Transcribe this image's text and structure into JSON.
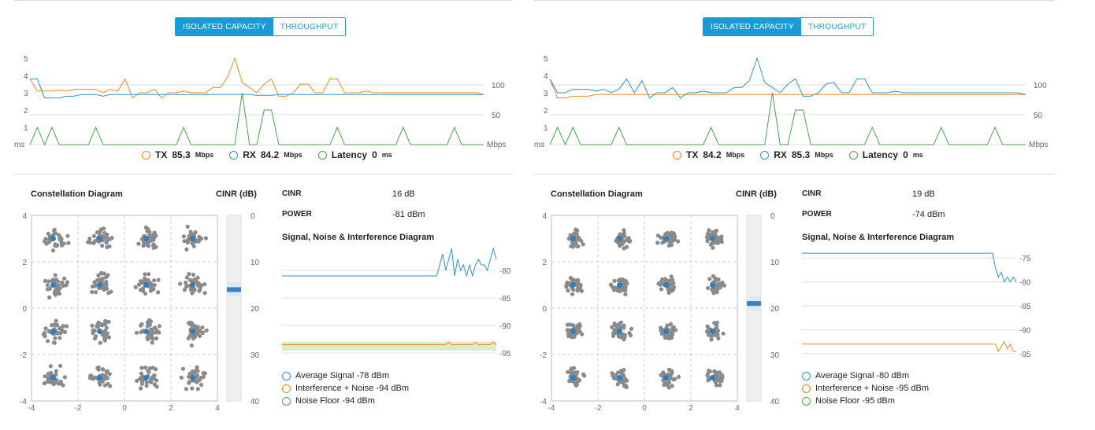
{
  "panels": [
    {
      "tabs": [
        {
          "label": "ISOLATED CAPACITY",
          "active": true
        },
        {
          "label": "THROUGHPUT",
          "active": false
        }
      ],
      "chart_data": {
        "type": "line",
        "left_axis": {
          "ticks": [
            "5",
            "4",
            "3",
            "2",
            "1"
          ],
          "unit": "ms"
        },
        "right_axis": {
          "ticks": [
            "100",
            "50"
          ],
          "unit": "Mbps"
        },
        "series": [
          {
            "name": "TX",
            "color": "#f0891c",
            "values": [
              3.8,
              3.1,
              3.1,
              3.1,
              3.15,
              3.1,
              3.2,
              3.2,
              3.2,
              3.2,
              3.0,
              3.2,
              3.1,
              3.8,
              2.7,
              3.0,
              3.0,
              3.2,
              2.7,
              3.0,
              3.0,
              3.1,
              3.0,
              3.0,
              3.0,
              3.3,
              3.3,
              3.9,
              5.0,
              3.6,
              3.3,
              3.0,
              3.5,
              3.8,
              2.8,
              2.8,
              3.0,
              3.5,
              3.5,
              3.0,
              3.0,
              3.8,
              3.8,
              3.0,
              3.0,
              3.0,
              3.1,
              3.0,
              3.0,
              3.0,
              3.0,
              3.0,
              3.0,
              3.0,
              3.0,
              3.0,
              3.0,
              3.0,
              3.0,
              3.0,
              3.0,
              3.0,
              2.9
            ]
          },
          {
            "name": "RX",
            "color": "#2d93cf",
            "values": [
              3.8,
              3.8,
              2.7,
              2.7,
              2.7,
              2.8,
              2.8,
              2.9,
              2.9,
              2.9,
              2.8,
              2.9,
              2.9,
              2.9,
              2.9,
              2.9,
              2.9,
              2.9,
              2.9,
              2.9,
              2.9,
              2.9,
              2.9,
              2.9,
              2.9,
              2.9,
              2.9,
              2.9,
              2.9,
              2.9,
              2.9,
              2.85,
              2.85,
              2.85,
              2.9,
              2.9,
              2.9,
              2.9,
              2.9,
              2.9,
              2.9,
              2.9,
              2.9,
              2.9,
              2.9,
              2.9,
              2.9,
              2.9,
              2.9,
              2.9,
              2.9,
              2.9,
              2.9,
              2.9,
              2.9,
              2.9,
              2.9,
              2.9,
              2.9,
              2.9,
              2.9,
              2.9,
              2.9
            ]
          },
          {
            "name": "Latency",
            "color": "#4aa64a",
            "values": [
              0,
              1,
              0,
              1,
              0,
              0,
              0,
              0,
              0,
              1,
              0,
              0,
              0,
              0,
              0,
              0,
              0,
              0,
              0,
              0,
              0,
              1,
              0,
              0,
              0,
              0,
              0,
              0,
              0,
              3,
              0,
              0,
              2,
              2,
              0,
              0,
              0,
              0,
              0,
              0,
              0,
              0,
              1,
              0,
              0,
              0,
              0,
              0,
              0,
              0,
              0,
              1,
              0,
              0,
              0,
              0,
              0,
              0,
              1,
              0,
              0,
              0,
              0
            ]
          }
        ]
      },
      "legend": [
        {
          "name": "TX",
          "value": "85.3",
          "unit": "Mbps",
          "color": "#f0891c"
        },
        {
          "name": "RX",
          "value": "84.2",
          "unit": "Mbps",
          "color": "#2d93cf"
        },
        {
          "name": "Latency",
          "value": "0",
          "unit": "ms",
          "color": "#4aa64a"
        }
      ],
      "constellation_title": "Constellation Diagram",
      "cinr_title": "CINR (dB)",
      "constellation_axis": [
        "4",
        "2",
        "0",
        "-2",
        "-4"
      ],
      "constellation_xaxis": [
        "-4",
        "-2",
        "0",
        "2",
        "4"
      ],
      "cinr_ticks": [
        "0",
        "10",
        "20",
        "30",
        "40"
      ],
      "cinr_level": 16,
      "cinr_label": "CINR",
      "cinr_value": "16 dB",
      "power_label": "POWER",
      "power_value": "-81 dBm",
      "sni_title": "Signal, Noise & Interference Diagram",
      "sni_ticks": [
        "-80",
        "-85",
        "-90",
        "-95"
      ],
      "sni_data": {
        "signal": [
          -81,
          -81,
          -81,
          -81,
          -81,
          -81,
          -81,
          -81,
          -81,
          -81,
          -81,
          -81,
          -81,
          -81,
          -81,
          -81,
          -81,
          -81,
          -81,
          -81,
          -81,
          -81,
          -81,
          -81,
          -81,
          -81,
          -81,
          -81,
          -81,
          -81,
          -81,
          -81,
          -81,
          -81,
          -81,
          -81,
          -81,
          -81,
          -81,
          -81,
          -81,
          -81,
          -81,
          -81,
          -81,
          -81,
          -81,
          -81,
          -81,
          -81,
          -81,
          -81,
          -81,
          -79,
          -77,
          -80,
          -78,
          -76,
          -81,
          -78,
          -80,
          -79,
          -81,
          -79,
          -81,
          -79,
          -78,
          -79,
          -79,
          -80,
          -78,
          -76,
          -78
        ],
        "interference": [
          -93.5,
          -93.5,
          -93.5,
          -93.5,
          -93.5,
          -93.5,
          -93.5,
          -93.5,
          -93.5,
          -93.5,
          -93.5,
          -93.5,
          -93.5,
          -93.5,
          -93.5,
          -93.5,
          -93.5,
          -93.5,
          -93.5,
          -93.5,
          -93.5,
          -93.5,
          -93.5,
          -93.5,
          -93.5,
          -93.5,
          -93.5,
          -93.5,
          -93.5,
          -93.5,
          -93.5,
          -93.5,
          -93.5,
          -93.5,
          -93.5,
          -93.5,
          -93.5,
          -93.5,
          -93.5,
          -93.5,
          -93.5,
          -93.5,
          -93.5,
          -93.5,
          -93.5,
          -93.5,
          -93.5,
          -93.5,
          -93.5,
          -93.5,
          -93.5,
          -93.5,
          -93.5,
          -93.5,
          -93.5,
          -93.5,
          -93.0,
          -93.5,
          -93.5,
          -93.5,
          -93.5,
          -93.5,
          -93.5,
          -93.5,
          -93.5,
          -93.0,
          -93.5,
          -93.5,
          -93.5,
          -93.5,
          -93.5,
          -93.0,
          -93.5
        ],
        "noise_floor": -94
      },
      "sni_legend": [
        {
          "text": "Average Signal -78 dBm",
          "color": "#2d93cf"
        },
        {
          "text": "Interference + Noise -94 dBm",
          "color": "#f0891c"
        },
        {
          "text": "Noise Floor -94 dBm",
          "color": "#4aa64a"
        }
      ]
    },
    {
      "tabs": [
        {
          "label": "ISOLATED CAPACITY",
          "active": true
        },
        {
          "label": "THROUGHPUT",
          "active": false
        }
      ],
      "chart_data": {
        "type": "line",
        "left_axis": {
          "ticks": [
            "5",
            "4",
            "3",
            "2",
            "1"
          ],
          "unit": "ms"
        },
        "right_axis": {
          "ticks": [
            "100",
            "50"
          ],
          "unit": "Mbps"
        },
        "series": [
          {
            "name": "TX",
            "color": "#f0891c",
            "values": [
              3.8,
              2.7,
              2.7,
              2.8,
              2.8,
              2.8,
              2.9,
              2.9,
              2.9,
              2.9,
              2.9,
              2.9,
              2.9,
              2.9,
              2.9,
              2.9,
              2.9,
              2.9,
              2.9,
              2.9,
              2.9,
              2.9,
              2.9,
              2.9,
              2.9,
              2.9,
              2.9,
              2.9,
              2.9,
              2.9,
              2.9,
              2.9,
              2.9,
              2.9,
              2.9,
              2.9,
              2.9,
              2.9,
              2.9,
              2.9,
              2.9,
              2.9,
              2.9,
              2.9,
              2.9,
              2.9,
              2.9,
              2.9,
              2.9,
              2.9,
              2.9,
              2.9,
              2.9,
              2.9,
              2.9,
              2.9,
              2.9,
              2.9,
              2.9,
              2.9,
              2.9,
              2.9,
              2.9
            ]
          },
          {
            "name": "RX",
            "color": "#2d93cf",
            "values": [
              3.8,
              3.0,
              3.0,
              3.2,
              3.2,
              3.2,
              3.1,
              3.2,
              3.0,
              3.2,
              3.8,
              3.0,
              3.7,
              2.7,
              3.0,
              3.0,
              3.3,
              2.7,
              3.0,
              3.0,
              3.1,
              3.0,
              3.0,
              3.0,
              3.3,
              3.3,
              3.7,
              5.0,
              3.6,
              3.3,
              3.0,
              3.5,
              3.8,
              2.8,
              2.8,
              3.0,
              3.5,
              3.6,
              3.0,
              3.0,
              3.8,
              3.8,
              3.0,
              3.0,
              3.0,
              3.1,
              3.0,
              3.0,
              3.0,
              3.0,
              3.0,
              3.0,
              3.0,
              3.0,
              3.0,
              3.0,
              3.0,
              3.0,
              3.0,
              3.0,
              3.0,
              3.0,
              2.9
            ]
          },
          {
            "name": "Latency",
            "color": "#4aa64a",
            "values": [
              0,
              1,
              0,
              1,
              0,
              0,
              0,
              0,
              0,
              1,
              0,
              0,
              0,
              0,
              0,
              0,
              0,
              0,
              0,
              0,
              0,
              1,
              0,
              0,
              0,
              0,
              0,
              0,
              0,
              3,
              0,
              0,
              2,
              2,
              0,
              0,
              0,
              0,
              0,
              0,
              0,
              0,
              1,
              0,
              0,
              0,
              0,
              0,
              0,
              0,
              0,
              1,
              0,
              0,
              0,
              0,
              0,
              0,
              1,
              0,
              0,
              0,
              0
            ]
          }
        ]
      },
      "legend": [
        {
          "name": "TX",
          "value": "84.2",
          "unit": "Mbps",
          "color": "#f0891c"
        },
        {
          "name": "RX",
          "value": "85.3",
          "unit": "Mbps",
          "color": "#2d93cf"
        },
        {
          "name": "Latency",
          "value": "0",
          "unit": "ms",
          "color": "#4aa64a"
        }
      ],
      "constellation_title": "Constellation Diagram",
      "cinr_title": "CINR (dB)",
      "constellation_axis": [
        "4",
        "2",
        "0",
        "-2",
        "-4"
      ],
      "constellation_xaxis": [
        "-4",
        "-2",
        "0",
        "2",
        "4"
      ],
      "cinr_ticks": [
        "0",
        "10",
        "20",
        "30",
        "40"
      ],
      "cinr_level": 19,
      "cinr_label": "CINR",
      "cinr_value": "19 dB",
      "power_label": "POWER",
      "power_value": "-74 dBm",
      "sni_title": "Signal, Noise & Interference Diagram",
      "sni_ticks": [
        "-75",
        "-80",
        "-85",
        "-90",
        "-95"
      ],
      "sni_data": {
        "signal": [
          -74,
          -74,
          -74,
          -74,
          -74,
          -74,
          -74,
          -74,
          -74,
          -74,
          -74,
          -74,
          -74,
          -74,
          -74,
          -74,
          -74,
          -74,
          -74,
          -74,
          -74,
          -74,
          -74,
          -74,
          -74,
          -74,
          -74,
          -74,
          -74,
          -74,
          -74,
          -74,
          -74,
          -74,
          -74,
          -74,
          -74,
          -74,
          -74,
          -74,
          -74,
          -74,
          -74,
          -74,
          -74,
          -74,
          -74,
          -74,
          -74,
          -74,
          -74,
          -74,
          -74,
          -74,
          -74,
          -74,
          -74,
          -74,
          -74,
          -74,
          -74,
          -74,
          -74,
          -74,
          -74,
          -77,
          -79,
          -78,
          -80,
          -79,
          -80,
          -79,
          -80
        ],
        "interference": [
          -93,
          -93,
          -93,
          -93,
          -93,
          -93,
          -93,
          -93,
          -93,
          -93,
          -93,
          -93,
          -93,
          -93,
          -93,
          -93,
          -93,
          -93,
          -93,
          -93,
          -93,
          -93,
          -93,
          -93,
          -93,
          -93,
          -93,
          -93,
          -93,
          -93,
          -93,
          -93,
          -93,
          -93,
          -93,
          -93,
          -93,
          -93,
          -93,
          -93,
          -93,
          -93,
          -93,
          -93,
          -93,
          -93,
          -93,
          -93,
          -93,
          -93,
          -93,
          -93,
          -93,
          -93,
          -93,
          -93,
          -93,
          -93,
          -93,
          -93,
          -93,
          -93,
          -93,
          -93,
          -93,
          -93,
          -94.5,
          -93.5,
          -92.5,
          -94,
          -93,
          -94.5,
          -94.5
        ],
        "noise_floor": -95
      },
      "sni_legend": [
        {
          "text": "Average Signal -80 dBm",
          "color": "#2d93cf"
        },
        {
          "text": "Interference + Noise -95 dBm",
          "color": "#f0891c"
        },
        {
          "text": "Noise Floor -95 dBm",
          "color": "#4aa64a"
        }
      ]
    }
  ]
}
